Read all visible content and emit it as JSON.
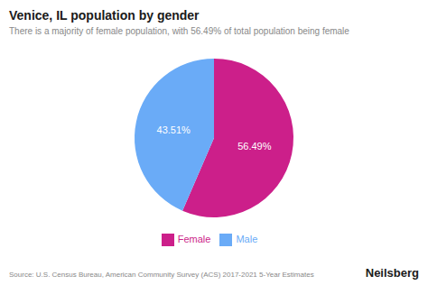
{
  "chart_data": {
    "type": "pie",
    "title": "Venice, IL population by gender",
    "subtitle": "There is a majority of female population, with 56.49% of total population being female",
    "categories": [
      "Female",
      "Male"
    ],
    "values": [
      56.49,
      43.51
    ],
    "value_labels": [
      "56.49%",
      "43.51%"
    ],
    "colors": [
      "#cc1f8a",
      "#6aabf7"
    ],
    "data_labels": true,
    "legend": "bottom",
    "annotations": [
      "Source: U.S. Census Bureau, American Community Survey (ACS) 2017-2021 5-Year Estimates",
      "Neilsberg"
    ]
  }
}
